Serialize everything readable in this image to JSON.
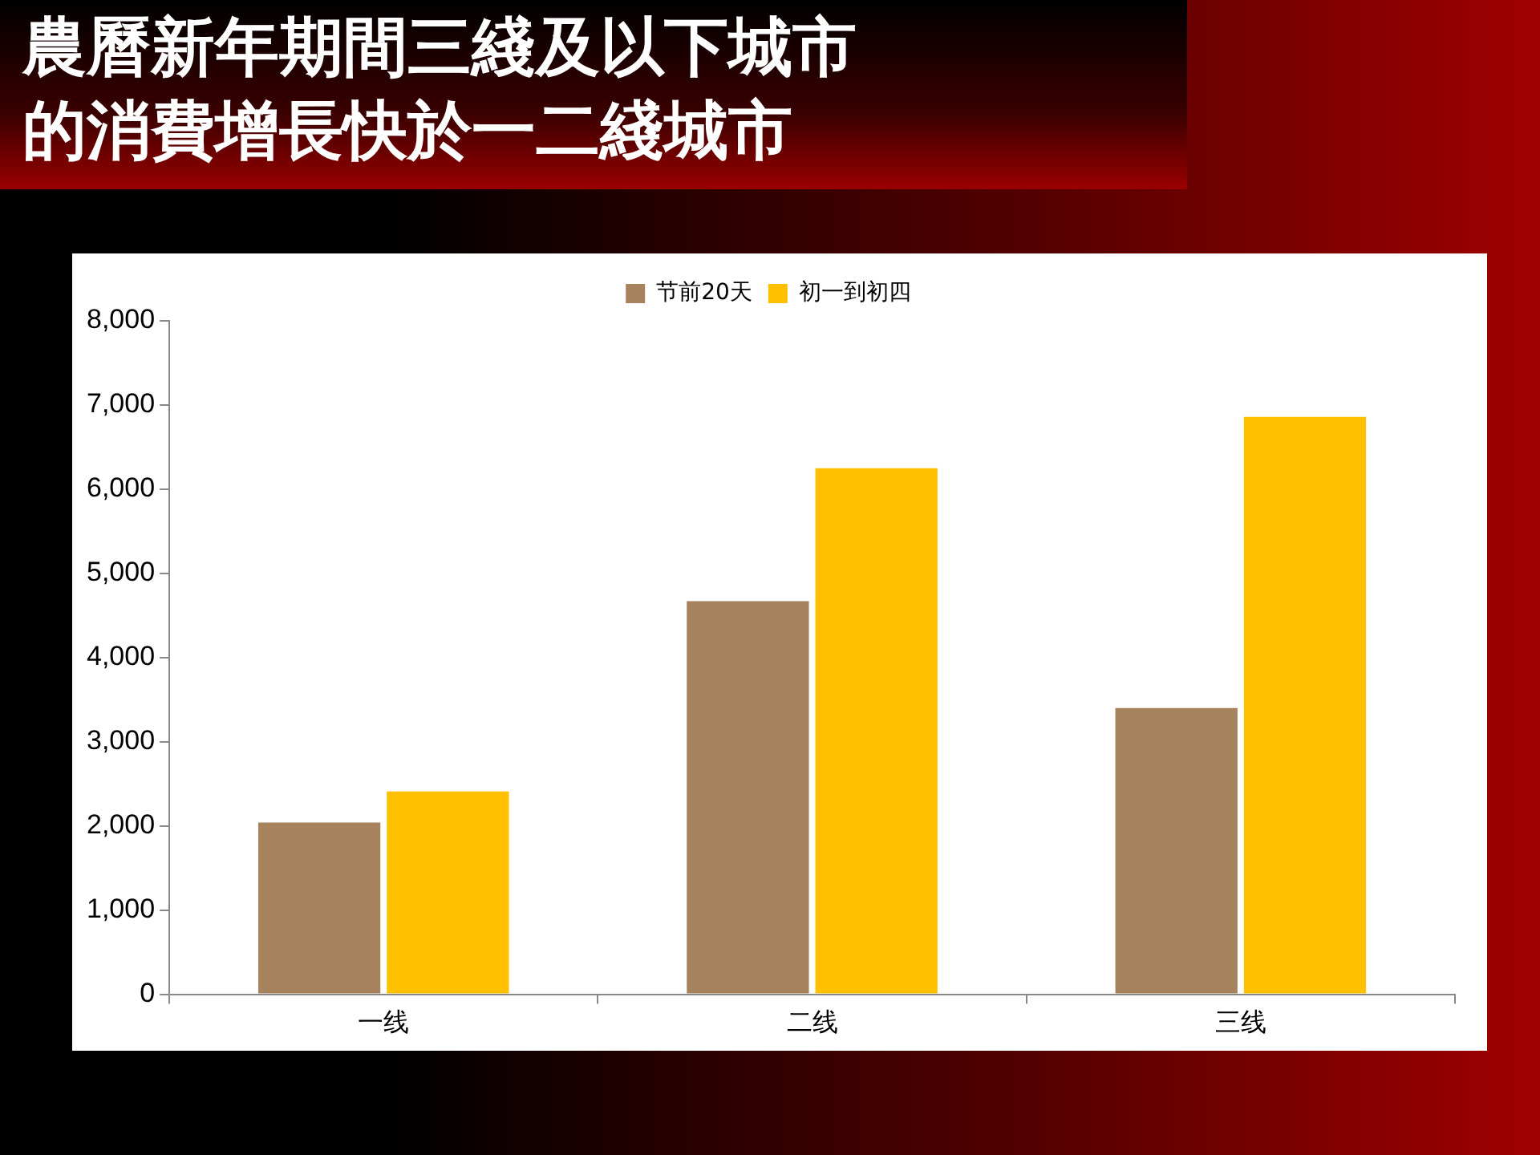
{
  "chart_data": {
    "type": "bar",
    "title": "農曆新年期間三綫及以下城市的消費增長快於一二綫城市",
    "categories": [
      "一线",
      "二线",
      "三线"
    ],
    "series": [
      {
        "name": "节前20天",
        "color": "#a6835c",
        "values": [
          2040,
          4670,
          3400
        ]
      },
      {
        "name": "初一到初四",
        "color": "#ffc000",
        "values": [
          2410,
          6250,
          6860
        ]
      }
    ],
    "ylim": [
      0,
      8000
    ],
    "yticks": [
      {
        "value": 0,
        "label": "0"
      },
      {
        "value": 1000,
        "label": "1,000"
      },
      {
        "value": 2000,
        "label": "2,000"
      },
      {
        "value": 3000,
        "label": "3,000"
      },
      {
        "value": 4000,
        "label": "4,000"
      },
      {
        "value": 5000,
        "label": "5,000"
      },
      {
        "value": 6000,
        "label": "6,000"
      },
      {
        "value": 7000,
        "label": "7,000"
      },
      {
        "value": 8000,
        "label": "8,000"
      }
    ],
    "grid": false,
    "legend": "top"
  }
}
